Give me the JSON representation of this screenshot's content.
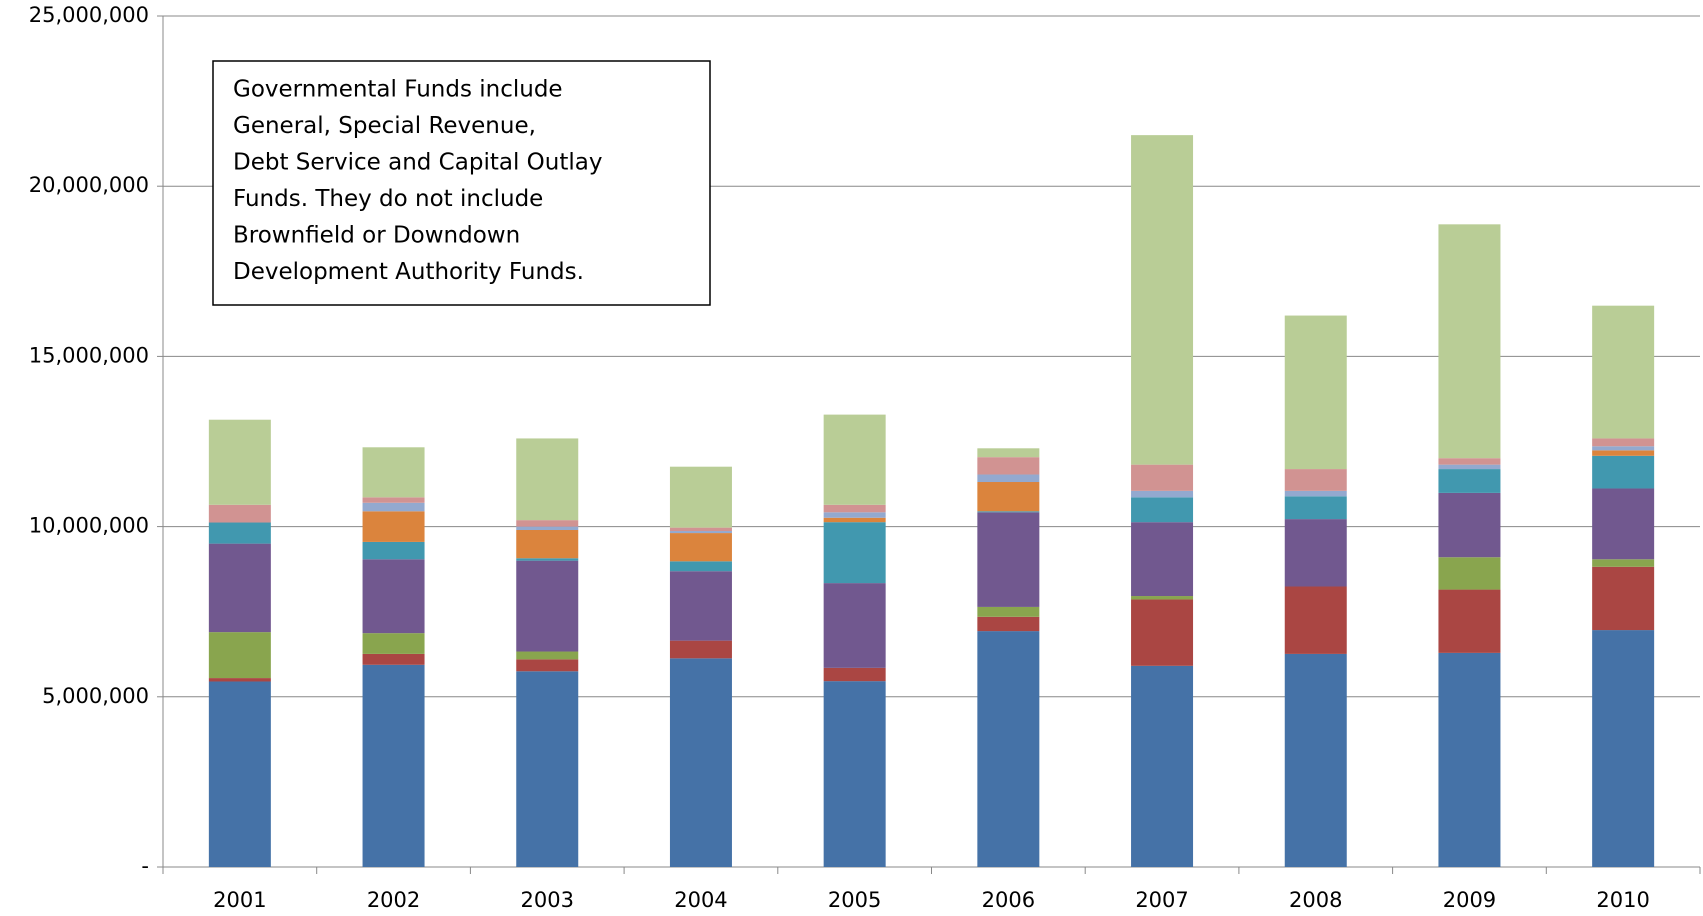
{
  "chart_data": {
    "type": "stacked_bar",
    "annotation": [
      "Governmental Funds include",
      "General, Special Revenue,",
      "Debt Service and Capital Outlay",
      "Funds. They do not include",
      "Brownfield or Downdown",
      "Development Authority Funds."
    ],
    "categories": [
      "2001",
      "2002",
      "2003",
      "2004",
      "2005",
      "2006",
      "2007",
      "2008",
      "2009",
      "2010"
    ],
    "series": [
      {
        "color": "#4572a7",
        "values": [
          5450000,
          5940000,
          5750000,
          6130000,
          5460000,
          6930000,
          5910000,
          6260000,
          6290000,
          6960000
        ]
      },
      {
        "color": "#aa4643",
        "values": [
          100000,
          320000,
          350000,
          520000,
          390000,
          420000,
          1950000,
          1980000,
          1860000,
          1860000
        ]
      },
      {
        "color": "#89a54e",
        "values": [
          1350000,
          610000,
          230000,
          0,
          0,
          290000,
          100000,
          0,
          950000,
          220000
        ]
      },
      {
        "color": "#71588f",
        "values": [
          2600000,
          2170000,
          2670000,
          2040000,
          2490000,
          2780000,
          2170000,
          1980000,
          1890000,
          2080000
        ]
      },
      {
        "color": "#4198af",
        "values": [
          620000,
          510000,
          70000,
          290000,
          1790000,
          30000,
          730000,
          670000,
          700000,
          960000
        ]
      },
      {
        "color": "#db843d",
        "values": [
          0,
          900000,
          830000,
          830000,
          130000,
          860000,
          0,
          0,
          0,
          160000
        ]
      },
      {
        "color": "#93a9cf",
        "values": [
          0,
          250000,
          100000,
          60000,
          160000,
          220000,
          190000,
          160000,
          130000,
          120000
        ]
      },
      {
        "color": "#d19392",
        "values": [
          520000,
          160000,
          190000,
          100000,
          220000,
          510000,
          770000,
          640000,
          190000,
          230000
        ]
      },
      {
        "color": "#b9cd96",
        "values": [
          2500000,
          1470000,
          2400000,
          1790000,
          2650000,
          260000,
          9680000,
          4510000,
          6870000,
          3900000
        ]
      }
    ],
    "ylim": [
      0,
      25000000
    ],
    "yticks": [
      {
        "value": 0,
        "label": "-"
      },
      {
        "value": 5000000,
        "label": "5,000,000"
      },
      {
        "value": 10000000,
        "label": "10,000,000"
      },
      {
        "value": 15000000,
        "label": "15,000,000"
      },
      {
        "value": 20000000,
        "label": "20,000,000"
      },
      {
        "value": 25000000,
        "label": "25,000,000"
      }
    ],
    "grid": true
  }
}
